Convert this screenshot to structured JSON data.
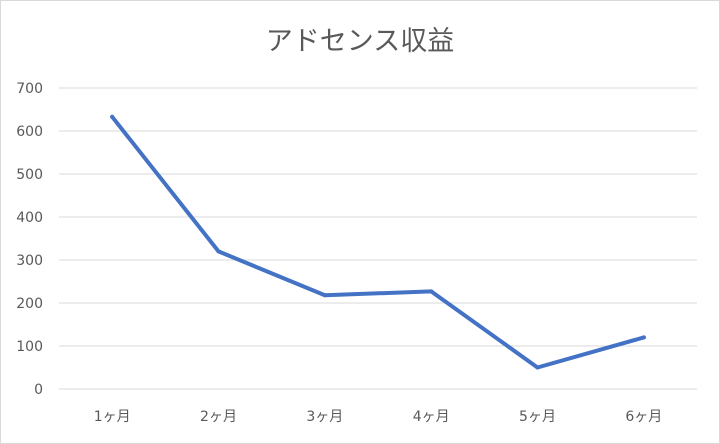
{
  "chart_data": {
    "type": "line",
    "title": "アドセンス収益",
    "xlabel": "",
    "ylabel": "",
    "categories": [
      "1ヶ月",
      "2ヶ月",
      "3ヶ月",
      "4ヶ月",
      "5ヶ月",
      "6ヶ月"
    ],
    "series": [
      {
        "values": [
          633,
          320,
          218,
          227,
          50,
          120
        ]
      }
    ],
    "ylim": [
      0,
      700
    ],
    "yticks": [
      0,
      100,
      200,
      300,
      400,
      500,
      600,
      700
    ],
    "grid": true,
    "legend": "none",
    "colors": {
      "line": "#4472c4",
      "grid": "#d9d9d9",
      "text": "#595959"
    }
  }
}
